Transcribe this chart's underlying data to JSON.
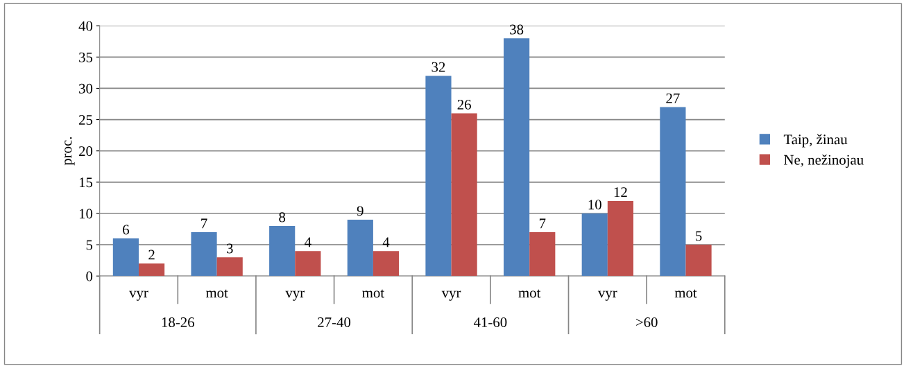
{
  "chart_data": {
    "type": "bar",
    "ylabel": "proc.",
    "categories": [
      "vyr",
      "mot",
      "vyr",
      "mot",
      "vyr",
      "mot",
      "vyr",
      "mot"
    ],
    "series": [
      {
        "name": "Taip, žinau",
        "color": "#4f81bd",
        "values": [
          6,
          7,
          8,
          9,
          32,
          38,
          10,
          27
        ]
      },
      {
        "name": "Ne, nežinojau",
        "color": "#c0504d",
        "values": [
          2,
          3,
          4,
          4,
          26,
          7,
          12,
          5
        ]
      }
    ],
    "annotations": [
      "18-26",
      "27-40",
      "41-60",
      ">60"
    ],
    "ylim": [
      0,
      40
    ],
    "yticks": [
      0,
      5,
      10,
      15,
      20,
      25,
      30,
      35,
      40
    ],
    "grid": "y",
    "legend": "right",
    "data_labels": true
  }
}
